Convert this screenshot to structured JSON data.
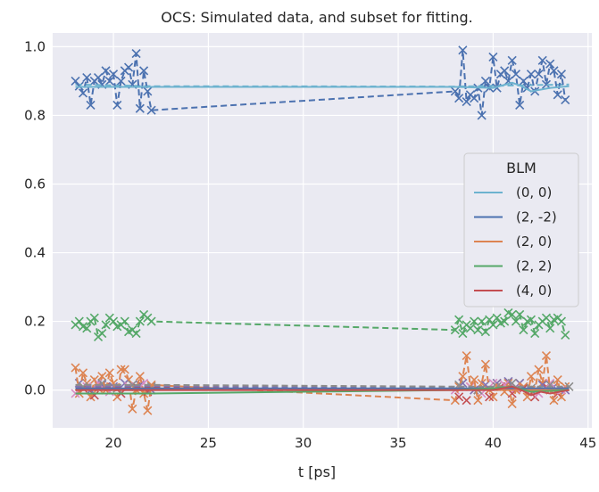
{
  "chart_data": {
    "type": "line",
    "title": "OCS: Simulated data, and subset for fitting.",
    "xlabel": "t [ps]",
    "ylabel": "",
    "xlim": [
      16.8,
      45.2
    ],
    "ylim": [
      -0.11,
      1.04
    ],
    "xticks": [
      20,
      25,
      30,
      35,
      40,
      45
    ],
    "yticks": [
      0.0,
      0.2,
      0.4,
      0.6,
      0.8,
      1.0
    ],
    "ytick_labels": [
      "0.0",
      "0.2",
      "0.4",
      "0.6",
      "0.8",
      "1.0"
    ],
    "grid": true,
    "legend": {
      "title": "BLM",
      "placement": "center-right"
    },
    "series": [
      {
        "name": "(0, 0)",
        "color": "#6db3cf",
        "line": {
          "x": [
            18,
            19,
            22,
            30,
            38,
            40,
            41,
            41.5,
            42,
            43,
            44
          ],
          "y": [
            0.883,
            0.883,
            0.883,
            0.883,
            0.883,
            0.88,
            0.895,
            0.885,
            0.87,
            0.88,
            0.885
          ]
        },
        "fit": {
          "x": [
            18,
            22,
            38,
            44
          ],
          "y": [
            0.89,
            0.885,
            0.884,
            0.89
          ]
        },
        "markers": {
          "x": [],
          "y": []
        }
      },
      {
        "name": "(2, -2)",
        "color": "#4c72b0",
        "line": {
          "x": [
            18,
            22,
            30,
            38,
            44
          ],
          "y": [
            0.005,
            0.005,
            0.005,
            0.005,
            0.005
          ]
        },
        "fit": {
          "x": [
            18,
            18.2,
            18.4,
            18.6,
            18.8,
            19,
            19.2,
            19.4,
            19.6,
            19.8,
            20,
            20.2,
            20.4,
            20.6,
            20.8,
            21,
            21.2,
            21.4,
            21.6,
            21.8,
            22,
            38,
            38.2,
            38.4,
            38.6,
            38.8,
            39,
            39.2,
            39.4,
            39.6,
            39.8,
            40,
            40.2,
            40.4,
            40.6,
            40.8,
            41,
            41.2,
            41.4,
            41.6,
            41.8,
            42,
            42.2,
            42.4,
            42.6,
            42.8,
            43,
            43.2,
            43.4,
            43.6,
            43.8
          ],
          "y": [
            0.9,
            0.885,
            0.865,
            0.91,
            0.83,
            0.9,
            0.91,
            0.89,
            0.93,
            0.9,
            0.92,
            0.83,
            0.9,
            0.93,
            0.94,
            0.89,
            0.98,
            0.82,
            0.93,
            0.87,
            0.815,
            0.87,
            0.85,
            0.99,
            0.84,
            0.86,
            0.85,
            0.88,
            0.8,
            0.9,
            0.88,
            0.97,
            0.88,
            0.92,
            0.93,
            0.9,
            0.96,
            0.92,
            0.83,
            0.9,
            0.88,
            0.92,
            0.87,
            0.92,
            0.96,
            0.89,
            0.95,
            0.93,
            0.86,
            0.92,
            0.845
          ]
        },
        "markers": {
          "x": [
            18,
            18.2,
            18.4,
            18.6,
            18.8,
            19,
            19.2,
            19.4,
            19.6,
            19.8,
            20,
            20.2,
            20.4,
            20.6,
            20.8,
            21,
            21.2,
            21.4,
            21.6,
            21.8,
            22,
            38,
            38.2,
            38.4,
            38.6,
            38.8,
            39,
            39.2,
            39.4,
            39.6,
            39.8,
            40,
            40.2,
            40.4,
            40.6,
            40.8,
            41,
            41.2,
            41.4,
            41.6,
            41.8,
            42,
            42.2,
            42.4,
            42.6,
            42.8,
            43,
            43.2,
            43.4,
            43.6,
            43.8
          ],
          "y": [
            0.9,
            0.885,
            0.865,
            0.91,
            0.83,
            0.9,
            0.91,
            0.89,
            0.93,
            0.9,
            0.92,
            0.83,
            0.9,
            0.93,
            0.94,
            0.89,
            0.98,
            0.82,
            0.93,
            0.87,
            0.815,
            0.87,
            0.85,
            0.99,
            0.84,
            0.86,
            0.85,
            0.88,
            0.8,
            0.9,
            0.88,
            0.97,
            0.88,
            0.92,
            0.93,
            0.9,
            0.96,
            0.92,
            0.83,
            0.9,
            0.88,
            0.92,
            0.87,
            0.92,
            0.96,
            0.89,
            0.95,
            0.93,
            0.86,
            0.92,
            0.845
          ]
        }
      },
      {
        "name": "(2, 0)",
        "color": "#dd8452",
        "line": {
          "x": [
            18,
            22,
            30,
            38,
            41,
            42,
            44
          ],
          "y": [
            0.0,
            0.0,
            0.0,
            0.0,
            0.0,
            0.0,
            0.0
          ]
        },
        "fit": {
          "x": [
            18,
            18.2,
            18.4,
            18.6,
            18.8,
            19,
            19.2,
            19.4,
            19.6,
            19.8,
            20,
            20.2,
            20.4,
            20.6,
            20.8,
            21,
            21.2,
            21.4,
            21.6,
            21.8,
            22,
            38,
            38.2,
            38.4,
            38.6,
            38.8,
            39,
            39.2,
            39.4,
            39.6,
            39.8,
            40,
            40.2,
            40.4,
            40.6,
            40.8,
            41,
            41.2,
            41.4,
            41.6,
            41.8,
            42,
            42.2,
            42.4,
            42.6,
            42.8,
            43,
            43.2,
            43.4,
            43.6,
            43.8
          ],
          "y": [
            0.065,
            -0.01,
            0.05,
            0.02,
            -0.02,
            0.03,
            0.005,
            0.04,
            0.0,
            0.05,
            0.02,
            -0.02,
            0.06,
            0.06,
            0.03,
            -0.055,
            0.0,
            0.04,
            -0.01,
            -0.06,
            0.015,
            -0.03,
            0.01,
            0.04,
            0.1,
            0.01,
            0.03,
            -0.03,
            0.02,
            0.075,
            0.0,
            -0.02,
            0.02,
            0.01,
            -0.005,
            0.02,
            -0.04,
            0.0,
            0.02,
            0.01,
            -0.02,
            0.04,
            0.0,
            0.06,
            0.02,
            0.1,
            0.0,
            -0.03,
            0.03,
            -0.02,
            0.01
          ]
        },
        "markers": {
          "x": [
            18,
            18.2,
            18.4,
            18.6,
            18.8,
            19,
            19.2,
            19.4,
            19.6,
            19.8,
            20,
            20.2,
            20.4,
            20.6,
            20.8,
            21,
            21.2,
            21.4,
            21.6,
            21.8,
            22,
            38,
            38.2,
            38.4,
            38.6,
            38.8,
            39,
            39.2,
            39.4,
            39.6,
            39.8,
            40,
            40.2,
            40.4,
            40.6,
            40.8,
            41,
            41.2,
            41.4,
            41.6,
            41.8,
            42,
            42.2,
            42.4,
            42.6,
            42.8,
            43,
            43.2,
            43.4,
            43.6,
            43.8
          ],
          "y": [
            0.065,
            -0.01,
            0.05,
            0.02,
            -0.02,
            0.03,
            0.005,
            0.04,
            0.0,
            0.05,
            0.02,
            -0.02,
            0.06,
            0.06,
            0.03,
            -0.055,
            0.0,
            0.04,
            -0.01,
            -0.06,
            0.015,
            -0.03,
            0.01,
            0.04,
            0.1,
            0.01,
            0.03,
            -0.03,
            0.02,
            0.075,
            0.0,
            -0.02,
            0.02,
            0.01,
            -0.005,
            0.02,
            -0.04,
            0.0,
            0.02,
            0.01,
            -0.02,
            0.04,
            0.0,
            0.06,
            0.02,
            0.1,
            0.0,
            -0.03,
            0.03,
            -0.02,
            0.01
          ]
        }
      },
      {
        "name": "(2, 2)",
        "color": "#55a868",
        "line": {
          "x": [
            18,
            22,
            30,
            38,
            40,
            41,
            42,
            44
          ],
          "y": [
            -0.01,
            -0.01,
            -0.005,
            0.0,
            0.005,
            0.01,
            -0.005,
            0.0
          ]
        },
        "fit": {
          "x": [
            18,
            18.2,
            18.4,
            18.6,
            18.8,
            19,
            19.2,
            19.4,
            19.6,
            19.8,
            20,
            20.2,
            20.4,
            20.6,
            20.8,
            21,
            21.2,
            21.4,
            21.6,
            21.8,
            22,
            38,
            38.2,
            38.4,
            38.6,
            38.8,
            39,
            39.2,
            39.4,
            39.6,
            39.8,
            40,
            40.2,
            40.4,
            40.6,
            40.8,
            41,
            41.2,
            41.4,
            41.6,
            41.8,
            42,
            42.2,
            42.4,
            42.6,
            42.8,
            43,
            43.2,
            43.4,
            43.6,
            43.8
          ],
          "y": [
            0.19,
            0.2,
            0.185,
            0.18,
            0.2,
            0.21,
            0.155,
            0.165,
            0.19,
            0.21,
            0.2,
            0.185,
            0.19,
            0.2,
            0.17,
            0.175,
            0.165,
            0.2,
            0.22,
            0.21,
            0.2,
            0.175,
            0.205,
            0.165,
            0.19,
            0.18,
            0.2,
            0.175,
            0.2,
            0.17,
            0.205,
            0.19,
            0.21,
            0.195,
            0.2,
            0.225,
            0.22,
            0.2,
            0.22,
            0.175,
            0.2,
            0.205,
            0.165,
            0.19,
            0.2,
            0.21,
            0.18,
            0.205,
            0.21,
            0.2,
            0.16
          ]
        },
        "markers": {
          "x": [
            18,
            18.2,
            18.4,
            18.6,
            18.8,
            19,
            19.2,
            19.4,
            19.6,
            19.8,
            20,
            20.2,
            20.4,
            20.6,
            20.8,
            21,
            21.2,
            21.4,
            21.6,
            21.8,
            22,
            38,
            38.2,
            38.4,
            38.6,
            38.8,
            39,
            39.2,
            39.4,
            39.6,
            39.8,
            40,
            40.2,
            40.4,
            40.6,
            40.8,
            41,
            41.2,
            41.4,
            41.6,
            41.8,
            42,
            42.2,
            42.4,
            42.6,
            42.8,
            43,
            43.2,
            43.4,
            43.6,
            43.8
          ],
          "y": [
            0.19,
            0.2,
            0.185,
            0.18,
            0.2,
            0.21,
            0.155,
            0.165,
            0.19,
            0.21,
            0.2,
            0.185,
            0.19,
            0.2,
            0.17,
            0.175,
            0.165,
            0.2,
            0.22,
            0.21,
            0.2,
            0.175,
            0.205,
            0.165,
            0.19,
            0.18,
            0.2,
            0.175,
            0.2,
            0.17,
            0.205,
            0.19,
            0.21,
            0.195,
            0.2,
            0.225,
            0.22,
            0.2,
            0.22,
            0.175,
            0.2,
            0.205,
            0.165,
            0.19,
            0.2,
            0.21,
            0.18,
            0.205,
            0.21,
            0.2,
            0.16
          ]
        }
      },
      {
        "name": "(4, 0)",
        "color": "#c44e52",
        "line": {
          "x": [
            18,
            22,
            30,
            38,
            40,
            41,
            41.5,
            42,
            42.5,
            43,
            44
          ],
          "y": [
            0.0,
            0.0,
            0.0,
            0.0,
            0.0,
            0.01,
            0.0,
            -0.015,
            -0.005,
            -0.01,
            0.0
          ]
        },
        "fit": {
          "x": [
            18,
            22,
            38,
            44
          ],
          "y": [
            0.01,
            0.008,
            0.0,
            0.005
          ]
        },
        "markers": {
          "x": [
            18.4,
            19,
            19.6,
            20.4,
            21.2,
            21.8,
            38.2,
            38.6,
            39.2,
            39.8,
            40.4,
            41,
            41.6,
            42.2,
            42.8,
            43.4
          ],
          "y": [
            0.005,
            -0.015,
            0.01,
            -0.01,
            0.01,
            -0.005,
            -0.02,
            -0.03,
            0.0,
            -0.02,
            0.01,
            -0.01,
            0.005,
            -0.02,
            0.01,
            -0.01
          ]
        }
      },
      {
        "name": "",
        "color": "#8172b2",
        "line": {
          "x": [],
          "y": []
        },
        "fit": {
          "x": [
            18,
            22,
            38,
            44
          ],
          "y": [
            0.01,
            0.012,
            0.005,
            0.0
          ]
        },
        "markers": {
          "x": [
            18.2,
            18.8,
            19.4,
            20.0,
            20.6,
            21.4,
            22,
            38.4,
            39.0,
            39.6,
            40.2,
            40.8,
            41.4,
            42.0,
            42.6,
            43.2,
            43.8
          ],
          "y": [
            0.02,
            0.0,
            0.015,
            0.01,
            0.02,
            0.015,
            0.0,
            0.02,
            0.0,
            0.015,
            0.02,
            0.025,
            0.02,
            0.0,
            0.015,
            0.01,
            0.0
          ]
        }
      },
      {
        "name": "",
        "color": "#da8bc3",
        "line": {
          "x": [],
          "y": []
        },
        "fit": {
          "x": [],
          "y": []
        },
        "markers": {
          "x": [
            18.0,
            18.6,
            19.2,
            19.8,
            20.8,
            21.6,
            38.0,
            38.8,
            39.4,
            40.0,
            40.6,
            41.2,
            42.4,
            43.0,
            43.6
          ],
          "y": [
            -0.01,
            0.01,
            0.02,
            -0.005,
            0.01,
            0.02,
            0.0,
            0.01,
            -0.01,
            0.02,
            0.015,
            0.005,
            -0.01,
            0.02,
            0.0
          ]
        }
      },
      {
        "name": "",
        "color": "#8c8c8c",
        "line": {
          "x": [],
          "y": []
        },
        "fit": {
          "x": [
            18,
            22,
            38,
            44
          ],
          "y": [
            0.015,
            0.015,
            0.01,
            0.01
          ]
        },
        "markers": {
          "x": [
            18.4,
            19.4,
            20.2,
            21.0,
            22.0,
            38.2,
            39.2,
            40.2,
            41.0,
            42.0,
            43.0,
            44.0
          ],
          "y": [
            0.01,
            0.02,
            0.005,
            0.015,
            0.01,
            0.015,
            0.0,
            0.01,
            0.02,
            0.005,
            0.015,
            0.01
          ]
        }
      }
    ]
  }
}
